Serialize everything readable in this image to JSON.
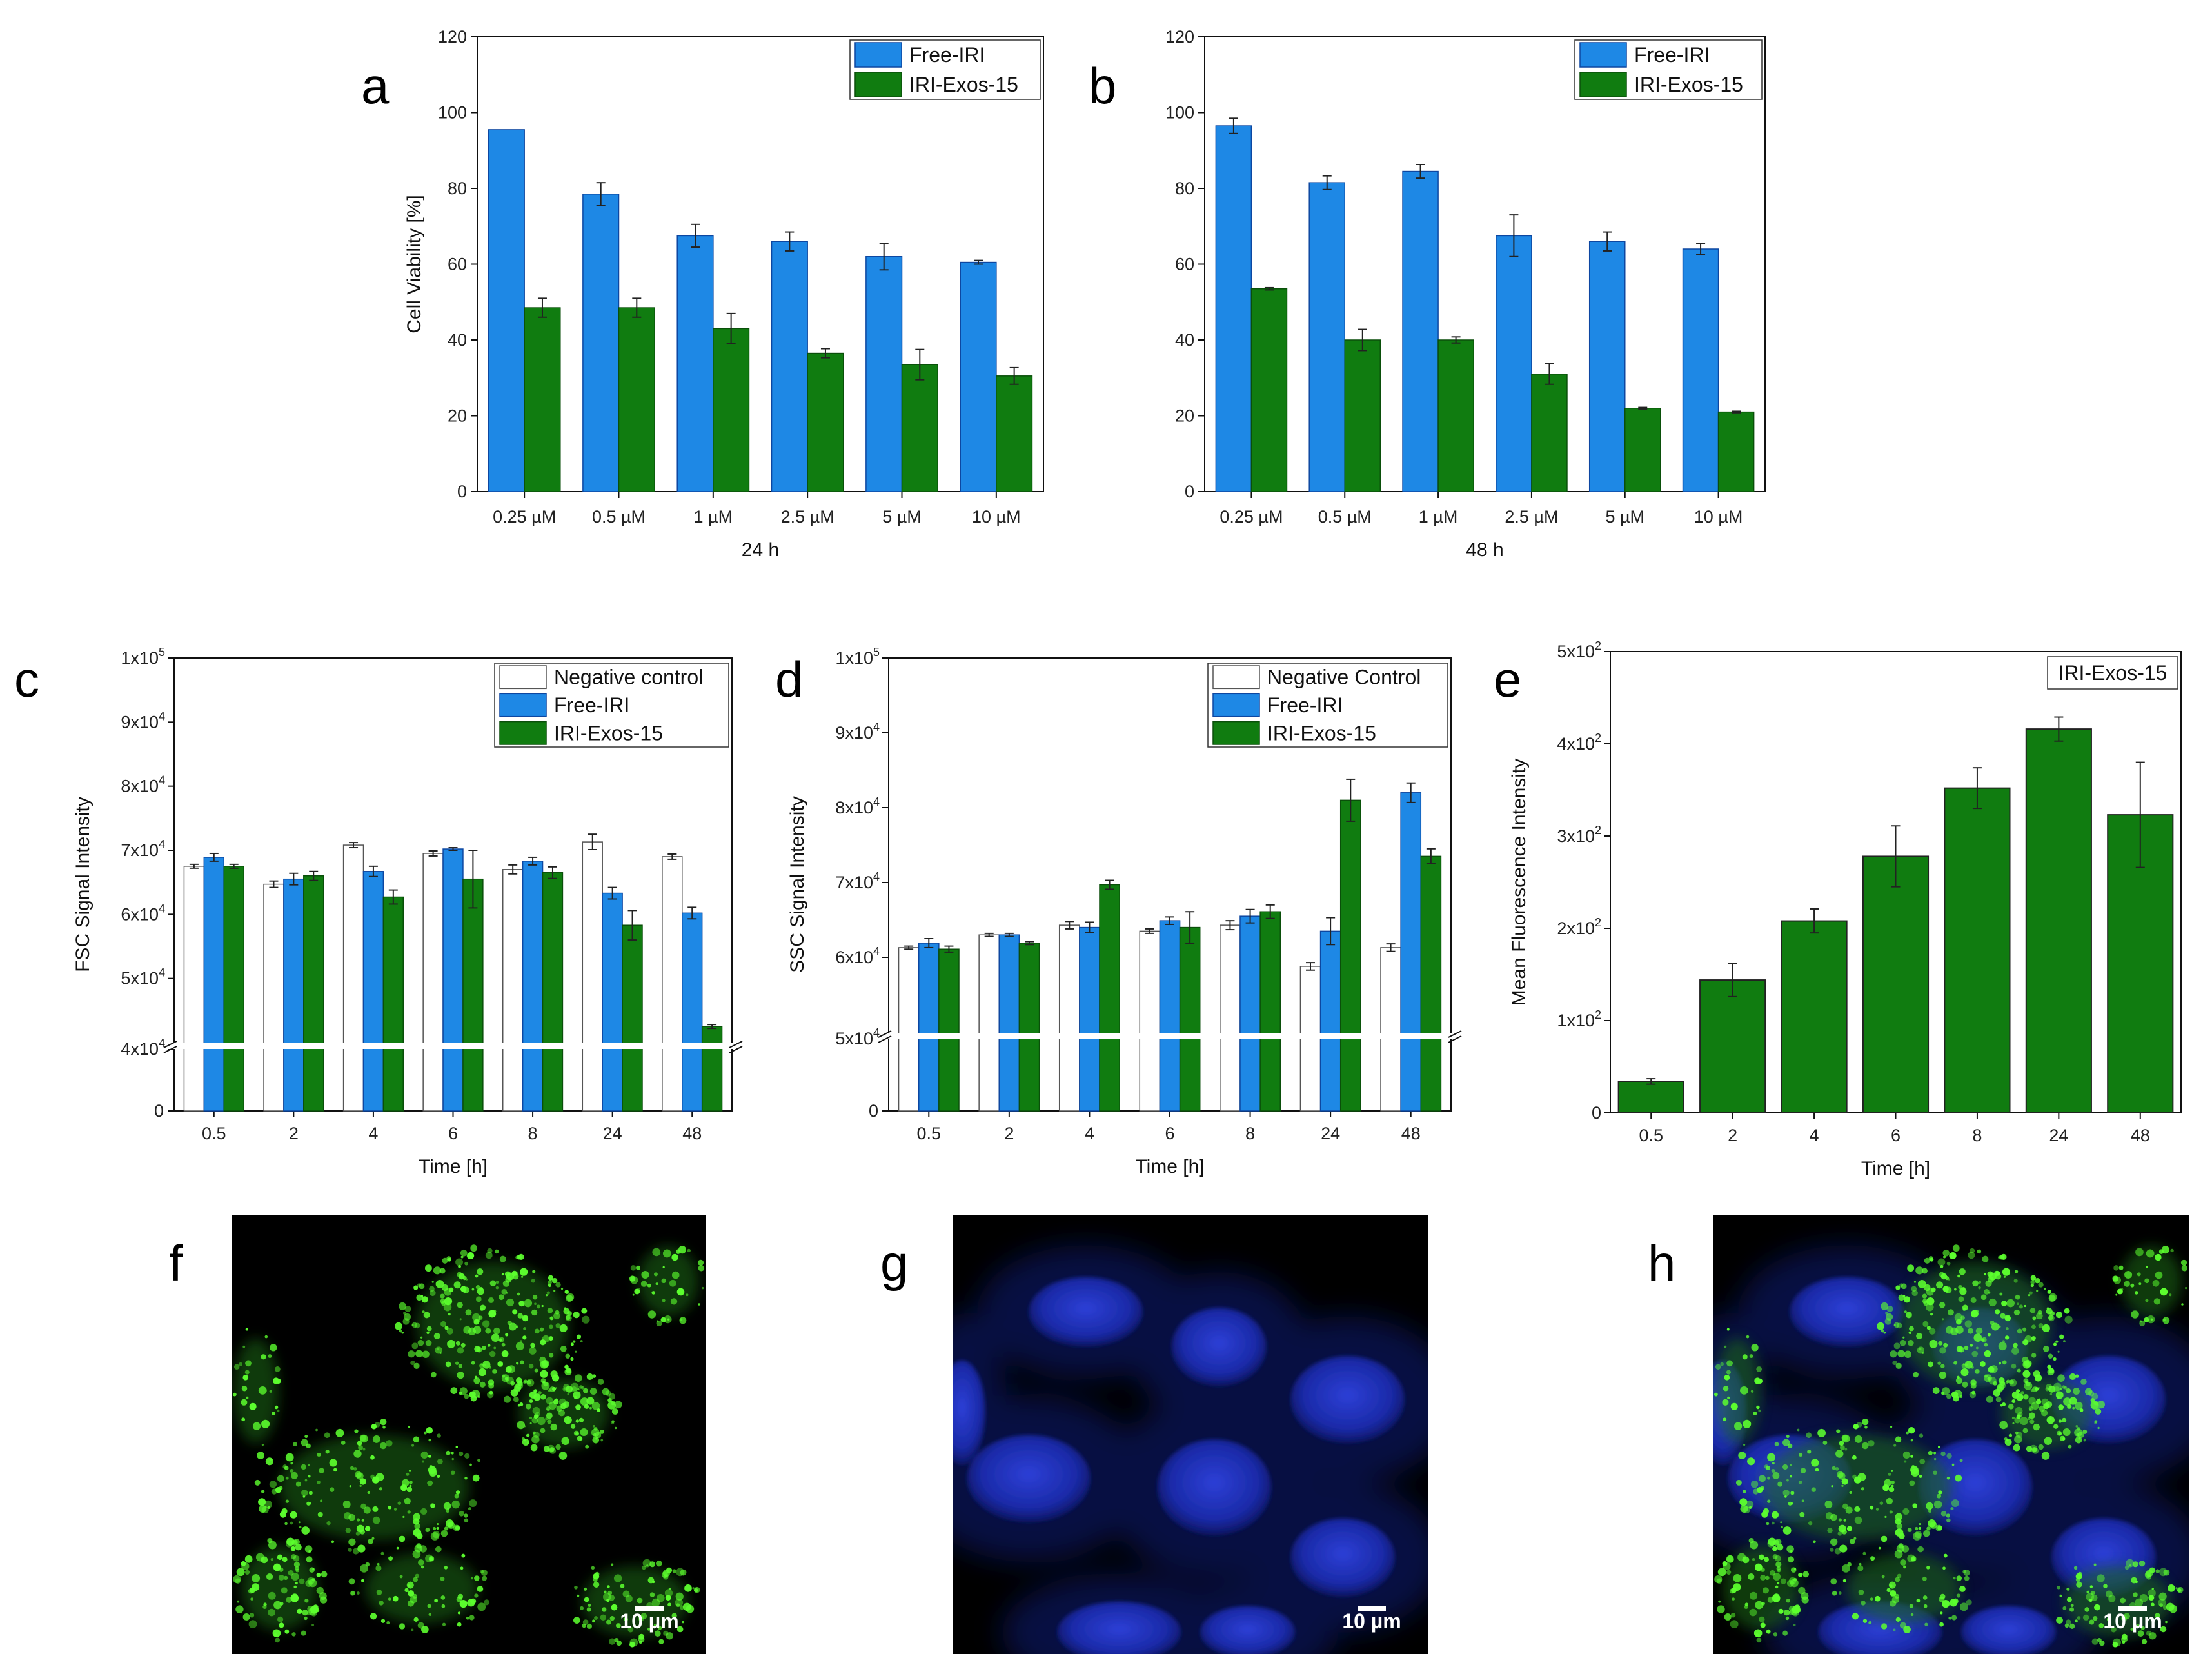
{
  "colors": {
    "free": "#1e88e5",
    "exos": "#107c10",
    "neg": "#ffffff",
    "free_edge": "#0d47a1",
    "exos_edge": "#0a4f0a"
  },
  "chart_data": [
    {
      "id": "a",
      "type": "bar",
      "letter": "a",
      "title": "",
      "xlabel": "24 h",
      "ylabel": "Cell Viability [%]",
      "ylim": [
        0,
        120
      ],
      "yticks": [
        "0",
        "20",
        "40",
        "60",
        "80",
        "100",
        "120"
      ],
      "categories": [
        "0.25 µM",
        "0.5 µM",
        "1 µM",
        "2.5 µM",
        "5 µM",
        "10 µM"
      ],
      "series": [
        {
          "name": "Free-IRI",
          "color": "#1e88e5",
          "values": [
            95.5,
            78.5,
            67.5,
            66.0,
            62.0,
            60.5
          ],
          "errors": [
            0,
            3,
            3,
            2.5,
            3.5,
            0.5
          ]
        },
        {
          "name": "IRI-Exos-15",
          "color": "#107c10",
          "values": [
            48.5,
            48.5,
            43.0,
            36.5,
            33.5,
            30.5
          ],
          "errors": [
            2.5,
            2.5,
            4,
            1.2,
            4,
            2.2
          ]
        }
      ],
      "legend": "top-right"
    },
    {
      "id": "b",
      "type": "bar",
      "letter": "b",
      "title": "",
      "xlabel": "48 h",
      "ylabel": "",
      "ylim": [
        0,
        120
      ],
      "yticks": [
        "0",
        "20",
        "40",
        "60",
        "80",
        "100",
        "120"
      ],
      "categories": [
        "0.25 µM",
        "0.5 µM",
        "1 µM",
        "2.5 µM",
        "5 µM",
        "10 µM"
      ],
      "series": [
        {
          "name": "Free-IRI",
          "color": "#1e88e5",
          "values": [
            96.5,
            81.5,
            84.5,
            67.5,
            66.0,
            64.0
          ],
          "errors": [
            2,
            1.8,
            1.8,
            5.5,
            2.5,
            1.5
          ]
        },
        {
          "name": "IRI-Exos-15",
          "color": "#107c10",
          "values": [
            53.5,
            40.0,
            40.0,
            31.0,
            22.0,
            21.0
          ],
          "errors": [
            0.3,
            2.8,
            0.8,
            2.7,
            0.2,
            0.2
          ]
        }
      ],
      "legend": "top-right"
    },
    {
      "id": "c",
      "type": "bar",
      "letter": "c",
      "xlabel": "Time [h]",
      "ylabel": "FSC Signal Intensity",
      "axis_break": [
        0,
        40000
      ],
      "ylim": [
        40000,
        100000
      ],
      "yticks": [
        {
          "m": "4",
          "e": "4"
        },
        {
          "m": "5",
          "e": "4"
        },
        {
          "m": "6",
          "e": "4"
        },
        {
          "m": "7",
          "e": "4"
        },
        {
          "m": "8",
          "e": "4"
        },
        {
          "m": "9",
          "e": "4"
        },
        {
          "m": "1",
          "e": "5"
        }
      ],
      "zero_label": "0",
      "categories": [
        "0.5",
        "2",
        "4",
        "6",
        "8",
        "24",
        "48"
      ],
      "series": [
        {
          "name": "Negative control",
          "color": "#ffffff",
          "values": [
            67500,
            64700,
            70800,
            69500,
            67000,
            71300,
            69000
          ],
          "errors": [
            300,
            500,
            400,
            400,
            700,
            1200,
            400
          ]
        },
        {
          "name": "Free-IRI",
          "color": "#1e88e5",
          "values": [
            68900,
            65500,
            66700,
            70200,
            68300,
            63300,
            60200
          ],
          "errors": [
            600,
            900,
            800,
            200,
            600,
            900,
            900
          ]
        },
        {
          "name": "IRI-Exos-15",
          "color": "#107c10",
          "values": [
            67500,
            66000,
            62700,
            65500,
            66500,
            58300,
            42500
          ],
          "errors": [
            300,
            700,
            1100,
            4500,
            900,
            2300,
            300
          ]
        }
      ],
      "legend": "top-right"
    },
    {
      "id": "d",
      "type": "bar",
      "letter": "d",
      "xlabel": "Time [h]",
      "ylabel": "SSC Signal Intensity",
      "axis_break": [
        0,
        50000
      ],
      "ylim": [
        50000,
        100000
      ],
      "yticks": [
        {
          "m": "5",
          "e": "4"
        },
        {
          "m": "6",
          "e": "4"
        },
        {
          "m": "7",
          "e": "4"
        },
        {
          "m": "8",
          "e": "4"
        },
        {
          "m": "9",
          "e": "4"
        },
        {
          "m": "1",
          "e": "5"
        }
      ],
      "zero_label": "0",
      "categories": [
        "0.5",
        "2",
        "4",
        "6",
        "8",
        "24",
        "48"
      ],
      "series": [
        {
          "name": "Negative Control",
          "color": "#ffffff",
          "values": [
            61300,
            63000,
            64300,
            63500,
            64300,
            58800,
            61300
          ],
          "errors": [
            200,
            200,
            500,
            300,
            600,
            500,
            500
          ]
        },
        {
          "name": "Free-IRI",
          "color": "#1e88e5",
          "values": [
            61900,
            63000,
            64000,
            64900,
            65500,
            63500,
            82000
          ],
          "errors": [
            600,
            200,
            700,
            500,
            900,
            1800,
            1300
          ]
        },
        {
          "name": "IRI-Exos-15",
          "color": "#107c10",
          "values": [
            61100,
            61900,
            69700,
            64000,
            66100,
            81000,
            73500
          ],
          "errors": [
            400,
            200,
            600,
            2100,
            900,
            2800,
            1000
          ]
        }
      ],
      "legend": "top-right"
    },
    {
      "id": "e",
      "type": "bar",
      "letter": "e",
      "xlabel": "Time [h]",
      "ylabel": "Mean Fluorescence Intensity",
      "ylim": [
        0,
        500
      ],
      "yticks": [
        {
          "m": "0",
          "e": ""
        },
        {
          "m": "1",
          "e": "2"
        },
        {
          "m": "2",
          "e": "2"
        },
        {
          "m": "3",
          "e": "2"
        },
        {
          "m": "4",
          "e": "2"
        },
        {
          "m": "5",
          "e": "2"
        }
      ],
      "categories": [
        "0.5",
        "2",
        "4",
        "6",
        "8",
        "24",
        "48"
      ],
      "series": [
        {
          "name": "IRI-Exos-15",
          "color": "#107c10",
          "values": [
            34,
            144,
            208,
            278,
            352,
            416,
            323
          ],
          "errors": [
            3,
            18,
            13,
            33,
            22,
            13,
            57
          ]
        }
      ],
      "legend_label": "IRI-Exos-15",
      "legend": "top-right"
    }
  ],
  "images": [
    {
      "id": "f",
      "letter": "f",
      "channel": "green",
      "scale_label": "10 µm"
    },
    {
      "id": "g",
      "letter": "g",
      "channel": "blue",
      "scale_label": "10 µm"
    },
    {
      "id": "h",
      "letter": "h",
      "channel": "merge",
      "scale_label": "10 µm"
    }
  ]
}
